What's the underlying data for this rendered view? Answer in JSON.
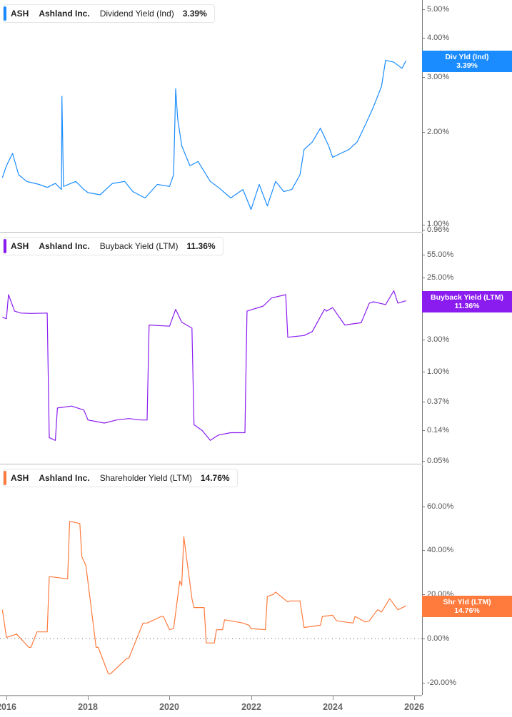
{
  "chart_data": [
    {
      "type": "line",
      "title": "ASH Ashland Inc. Dividend Yield (Ind) 3.39%",
      "legend": {
        "ticker": "ASH",
        "company": "Ashland Inc.",
        "metric": "Dividend Yield (Ind)",
        "value": "3.39%"
      },
      "color": "#1a8cff",
      "yscale": "log",
      "ytick_labels": [
        "5.00%",
        "4.00%",
        "3.00%",
        "2.00%",
        "1.00%",
        "0.96%"
      ],
      "ylim": [
        0.96,
        5.0
      ],
      "flag": {
        "label": "Div Yld (Ind)",
        "value": "3.39%"
      },
      "x": [
        2015.9,
        2016.0,
        2016.15,
        2016.3,
        2016.5,
        2016.8,
        2017.0,
        2017.2,
        2017.35,
        2017.36,
        2017.4,
        2017.7,
        2017.9,
        2018.0,
        2018.3,
        2018.6,
        2018.9,
        2019.1,
        2019.4,
        2019.7,
        2020.0,
        2020.1,
        2020.15,
        2020.2,
        2020.3,
        2020.5,
        2020.7,
        2021.0,
        2021.2,
        2021.5,
        2021.8,
        2022.0,
        2022.2,
        2022.4,
        2022.6,
        2022.8,
        2023.0,
        2023.2,
        2023.3,
        2023.5,
        2023.7,
        2023.9,
        2024.0,
        2024.2,
        2024.4,
        2024.6,
        2024.8,
        2025.0,
        2025.2,
        2025.3,
        2025.5,
        2025.7,
        2025.8
      ],
      "values": [
        1.42,
        1.55,
        1.7,
        1.45,
        1.38,
        1.35,
        1.32,
        1.36,
        1.3,
        2.6,
        1.33,
        1.38,
        1.3,
        1.27,
        1.25,
        1.36,
        1.38,
        1.28,
        1.22,
        1.35,
        1.33,
        1.45,
        2.75,
        2.2,
        1.8,
        1.55,
        1.6,
        1.38,
        1.32,
        1.22,
        1.3,
        1.12,
        1.35,
        1.15,
        1.38,
        1.28,
        1.3,
        1.45,
        1.75,
        1.85,
        2.05,
        1.8,
        1.65,
        1.7,
        1.75,
        1.85,
        2.1,
        2.4,
        2.8,
        3.4,
        3.35,
        3.2,
        3.39
      ]
    },
    {
      "type": "line",
      "title": "ASH Ashland Inc. Buyback Yield (LTM) 11.36%",
      "legend": {
        "ticker": "ASH",
        "company": "Ashland Inc.",
        "metric": "Buyback Yield (LTM)",
        "value": "11.36%"
      },
      "color": "#8a1cf0",
      "yscale": "log",
      "ytick_labels": [
        "55.00%",
        "25.00%",
        "8.00%",
        "3.00%",
        "1.00%",
        "0.37%",
        "0.14%",
        "0.05%"
      ],
      "ylim": [
        0.05,
        55.0
      ],
      "flag": {
        "label": "Buyback Yield (LTM)",
        "value": "11.36%"
      },
      "x": [
        2015.9,
        2016.0,
        2016.05,
        2016.2,
        2016.35,
        2016.6,
        2017.0,
        2017.05,
        2017.2,
        2017.25,
        2017.6,
        2017.9,
        2018.0,
        2018.4,
        2018.7,
        2019.0,
        2019.3,
        2019.45,
        2019.5,
        2020.0,
        2020.15,
        2020.3,
        2020.55,
        2020.6,
        2020.8,
        2021.0,
        2021.2,
        2021.5,
        2021.85,
        2021.9,
        2022.3,
        2022.5,
        2022.85,
        2022.9,
        2023.3,
        2023.5,
        2023.8,
        2023.85,
        2024.0,
        2024.3,
        2024.5,
        2024.7,
        2024.9,
        2025.0,
        2025.3,
        2025.5,
        2025.6,
        2025.8
      ],
      "values": [
        6.5,
        6.2,
        14.0,
        8.0,
        7.5,
        7.4,
        7.5,
        0.11,
        0.1,
        0.3,
        0.32,
        0.28,
        0.2,
        0.18,
        0.2,
        0.21,
        0.2,
        0.2,
        5.0,
        4.8,
        8.5,
        5.5,
        4.5,
        0.17,
        0.14,
        0.1,
        0.12,
        0.13,
        0.13,
        8.0,
        9.5,
        12.5,
        14.0,
        3.3,
        3.5,
        4.0,
        8.5,
        8.0,
        9.0,
        5.0,
        5.2,
        5.4,
        10.5,
        11.0,
        10.0,
        16.0,
        10.5,
        11.36
      ]
    },
    {
      "type": "line",
      "title": "ASH Ashland Inc. Shareholder Yield (LTM) 14.76%",
      "legend": {
        "ticker": "ASH",
        "company": "Ashland Inc.",
        "metric": "Shareholder Yield (LTM)",
        "value": "14.76%"
      },
      "color": "#ff7a3d",
      "yscale": "linear",
      "ytick_labels": [
        "60.00%",
        "40.00%",
        "20.00%",
        "0.00%",
        "-20.00%"
      ],
      "ylim": [
        -20.0,
        60.0
      ],
      "zero_line": "dotted",
      "flag": {
        "label": "Shr Yld (LTM)",
        "value": "14.76%"
      },
      "x": [
        2015.9,
        2016.0,
        2016.25,
        2016.55,
        2016.6,
        2016.75,
        2017.0,
        2017.05,
        2017.5,
        2017.55,
        2017.8,
        2017.85,
        2017.9,
        2017.95,
        2018.2,
        2018.25,
        2018.5,
        2018.55,
        2018.95,
        2019.0,
        2019.35,
        2019.45,
        2019.8,
        2019.85,
        2020.0,
        2020.1,
        2020.25,
        2020.3,
        2020.35,
        2020.55,
        2020.6,
        2020.85,
        2020.9,
        2021.1,
        2021.15,
        2021.3,
        2021.35,
        2021.8,
        2021.95,
        2022.0,
        2022.35,
        2022.4,
        2022.55,
        2022.6,
        2022.9,
        2022.95,
        2023.2,
        2023.3,
        2023.7,
        2023.75,
        2024.0,
        2024.1,
        2024.5,
        2024.55,
        2024.8,
        2024.9,
        2025.1,
        2025.2,
        2025.4,
        2025.6,
        2025.8
      ],
      "values": [
        13.0,
        0.5,
        2.0,
        -4.0,
        -4.0,
        3.0,
        3.0,
        28.0,
        27.0,
        53.0,
        52.0,
        37.0,
        35.0,
        33.0,
        -4.0,
        -4.0,
        -16.0,
        -16.0,
        -9.0,
        -9.0,
        7.0,
        7.0,
        10.0,
        10.0,
        4.0,
        4.5,
        26.0,
        24.0,
        46.0,
        18.0,
        14.0,
        14.0,
        -2.0,
        -2.0,
        4.0,
        4.0,
        8.5,
        7.0,
        6.0,
        4.5,
        4.0,
        19.0,
        20.0,
        21.0,
        16.5,
        17.0,
        17.0,
        5.0,
        6.0,
        10.0,
        10.5,
        8.0,
        7.0,
        10.0,
        7.5,
        8.0,
        13.0,
        12.0,
        18.0,
        13.0,
        14.76
      ]
    }
  ],
  "x_axis": {
    "tick_labels": [
      "2016",
      "2018",
      "2020",
      "2022",
      "2024",
      "2026"
    ],
    "range": [
      2015.85,
      2026.2
    ]
  }
}
